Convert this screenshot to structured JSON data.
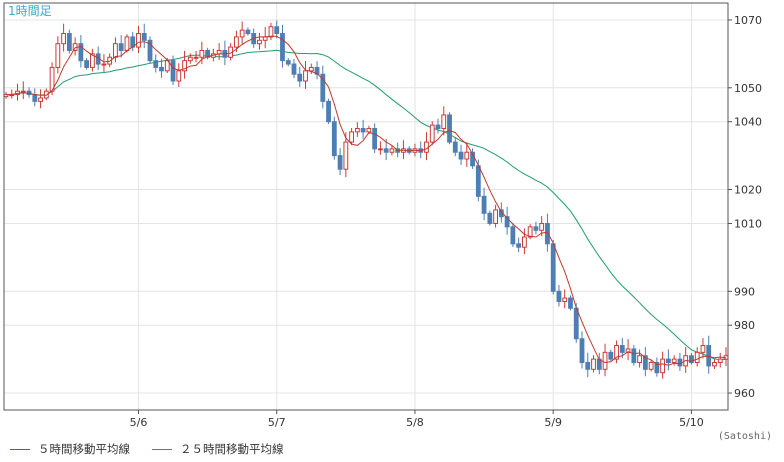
{
  "chart_data": {
    "type": "candlestick",
    "title": "1時間足",
    "unit": "(Satoshi)",
    "ylim": [
      955,
      1075
    ],
    "y_ticks": [
      960,
      980,
      990,
      1010,
      1020,
      1040,
      1050,
      1070
    ],
    "x_ticks": [
      "5/6",
      "5/7",
      "5/8",
      "5/9",
      "5/10"
    ],
    "grid": true,
    "legend": "bottom-left",
    "colors": {
      "up": "#cc3a36",
      "down": "#4d7eb4",
      "ma5": "#c0392b",
      "ma25": "#1f9e6d",
      "axis": "#555555",
      "grid": "#e4e4e4",
      "title": "#33aacc"
    },
    "series": [
      {
        "name": "５時間移動平均線",
        "key": "ma5"
      },
      {
        "name": "２５時間移動平均線",
        "key": "ma25"
      }
    ],
    "close": [
      1048,
      1048,
      1049,
      1049,
      1048,
      1046,
      1047,
      1049,
      1056,
      1063,
      1066,
      1061,
      1063,
      1058,
      1056,
      1060,
      1057,
      1057,
      1059,
      1063,
      1061,
      1065,
      1062,
      1066,
      1064,
      1058,
      1056,
      1055,
      1058,
      1052,
      1055,
      1058,
      1059,
      1059,
      1061,
      1059,
      1060,
      1061,
      1059,
      1062,
      1065,
      1067,
      1066,
      1063,
      1064,
      1065,
      1068,
      1066,
      1058,
      1057,
      1054,
      1052,
      1055,
      1056,
      1054,
      1046,
      1040,
      1030,
      1026,
      1034,
      1037,
      1038,
      1037,
      1038,
      1032,
      1032,
      1031,
      1032,
      1031,
      1032,
      1031,
      1032,
      1031,
      1034,
      1039,
      1038,
      1042,
      1034,
      1031,
      1029,
      1031,
      1027,
      1018,
      1013,
      1010,
      1014,
      1012,
      1009,
      1004,
      1003,
      1006,
      1009,
      1008,
      1010,
      1004,
      990,
      987,
      988,
      985,
      976,
      969,
      967,
      970,
      967,
      972,
      970,
      974,
      972,
      973,
      969,
      971,
      967,
      969,
      966,
      970,
      969,
      970,
      968,
      971,
      969,
      972,
      974,
      968,
      969,
      970,
      971
    ]
  }
}
